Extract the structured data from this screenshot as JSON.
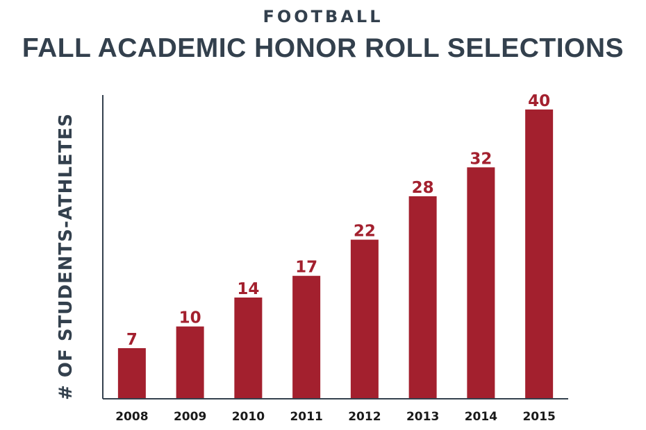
{
  "chart_data": {
    "type": "bar",
    "super_title": "FOOTBALL",
    "title": "FALL ACADEMIC HONOR ROLL SELECTIONS",
    "xlabel": "",
    "ylabel": "# OF STUDENTS-ATHLETES",
    "categories": [
      "2008",
      "2009",
      "2010",
      "2011",
      "2012",
      "2013",
      "2014",
      "2015"
    ],
    "values": [
      7,
      10,
      14,
      17,
      22,
      28,
      32,
      40
    ],
    "ylim": [
      0,
      42
    ],
    "grid": false,
    "bar_color": "#a3202e",
    "axis_color": "#33404d",
    "title_color": "#33404d"
  }
}
